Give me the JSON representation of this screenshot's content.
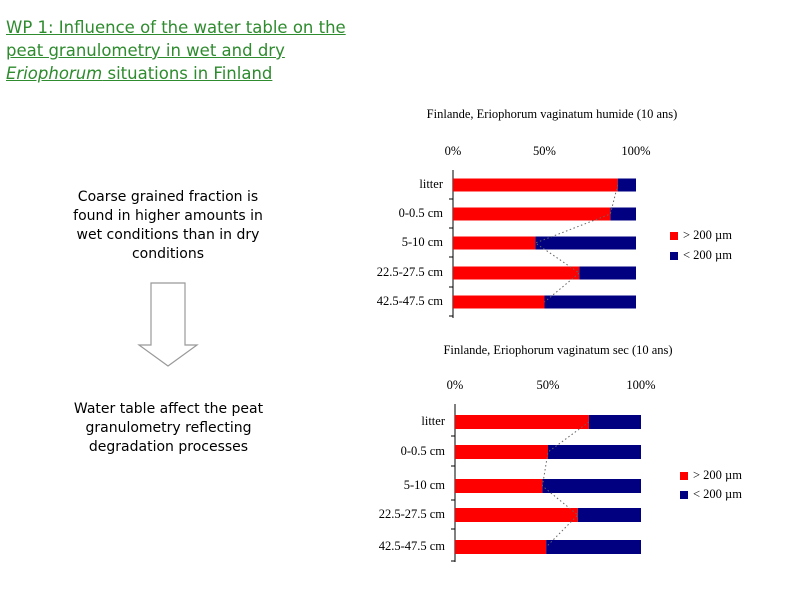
{
  "title": [
    "WP 1: Influence of the water table on the peat granulometry in wet and dry ",
    "Eriophorum",
    " situations in Finland"
  ],
  "notes": [
    "Coarse grained fraction is found in higher amounts in wet conditions than in dry conditions",
    "Water table affect the peat granulometry reflecting degradation processes"
  ],
  "chart_data": [
    {
      "type": "stacked-barh",
      "title": "Finlande, Eriophorum vaginatum humide  (10 ans)",
      "categories": [
        "litter",
        "0-0.5 cm",
        "5-10 cm",
        "22.5-27.5 cm",
        "42.5-47.5 cm"
      ],
      "series": [
        {
          "name": "> 200 µm",
          "color": "#ff0000",
          "values": [
            90,
            86,
            45,
            69,
            50
          ]
        },
        {
          "name": "< 200 µm",
          "color": "#000080",
          "values": [
            10,
            14,
            55,
            31,
            50
          ]
        }
      ],
      "xlim": [
        0,
        100
      ],
      "xticks": [
        {
          "value": 0,
          "label": "0%"
        },
        {
          "value": 50,
          "label": "50%"
        },
        {
          "value": 100,
          "label": "100%"
        }
      ],
      "legend": "right"
    },
    {
      "type": "stacked-barh",
      "title": "Finlande, Eriophorum vaginatum sec (10 ans)",
      "categories": [
        "litter",
        "0-0.5 cm",
        "5-10 cm",
        "22.5-27.5 cm",
        "42.5-47.5 cm"
      ],
      "series": [
        {
          "name": "> 200 µm",
          "color": "#ff0000",
          "values": [
            72,
            50,
            47,
            66,
            49
          ]
        },
        {
          "name": "< 200 µm",
          "color": "#000080",
          "values": [
            28,
            50,
            53,
            34,
            51
          ]
        }
      ],
      "xlim": [
        0,
        100
      ],
      "xticks": [
        {
          "value": 0,
          "label": "0%"
        },
        {
          "value": 50,
          "label": "50%"
        },
        {
          "value": 100,
          "label": "100%"
        }
      ],
      "legend": "right"
    }
  ]
}
